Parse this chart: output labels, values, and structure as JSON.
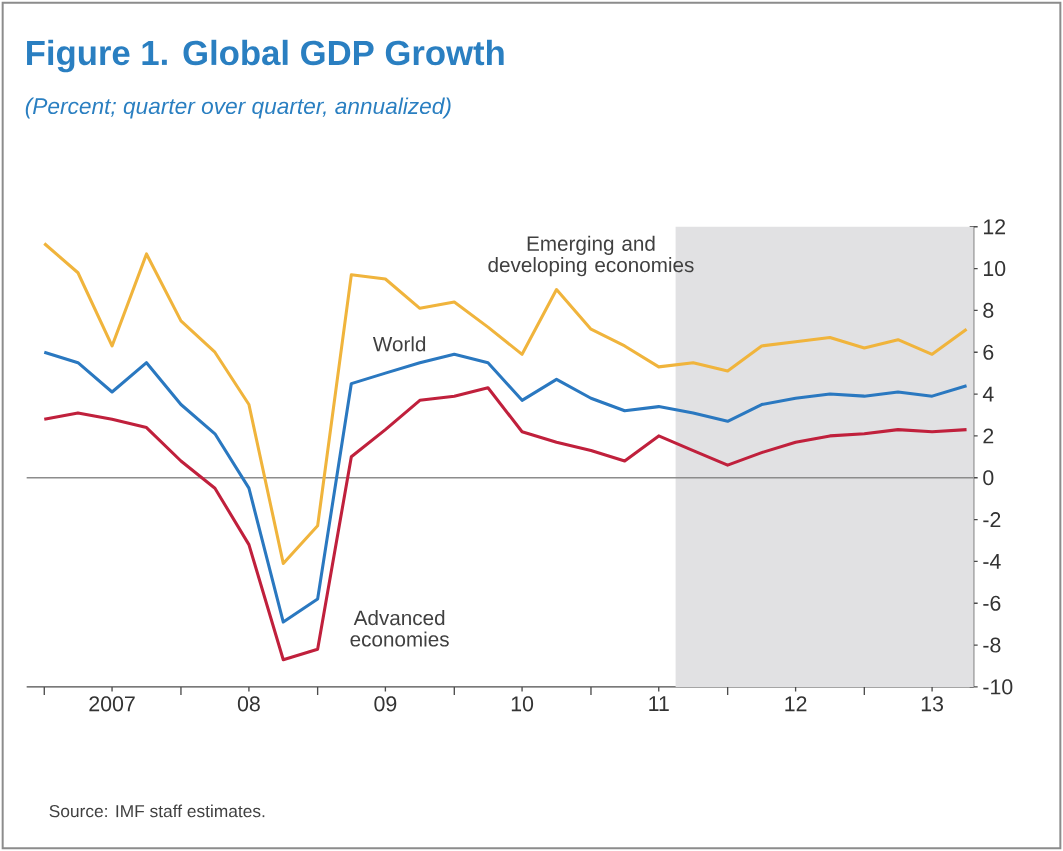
{
  "chart_data": {
    "type": "line",
    "title": "Figure 1.  Global GDP Growth",
    "subtitle": "(Percent; quarter over quarter, annualized)",
    "annotations": [
      "Source: IMF staff estimates."
    ],
    "x": [
      "2007-01",
      "2007-04",
      "2007-07",
      "2007-10",
      "2008-01",
      "2008-04",
      "2008-07",
      "2008-10",
      "2009-01",
      "2009-04",
      "2009-07",
      "2009-10",
      "2010-01",
      "2010-04",
      "2010-07",
      "2010-10",
      "2011-01",
      "2011-04",
      "2011-07",
      "2011-10",
      "2012-01",
      "2012-04",
      "2012-07",
      "2012-10",
      "2013-01",
      "2013-04",
      "2013-07",
      "2013-10"
    ],
    "series": [
      {
        "name": "Emerging and developing economies",
        "color": "#f0b43c",
        "values": [
          11.2,
          9.8,
          6.3,
          10.7,
          7.5,
          6.0,
          3.5,
          -4.1,
          -2.3,
          9.7,
          9.5,
          8.1,
          8.4,
          7.2,
          5.9,
          9.0,
          7.1,
          6.3,
          5.3,
          5.5,
          5.1,
          6.3,
          6.5,
          6.7,
          6.2,
          6.6,
          5.9,
          7.1
        ]
      },
      {
        "name": "World",
        "color": "#2a78c0",
        "values": [
          6.0,
          5.5,
          4.1,
          5.5,
          3.5,
          2.1,
          -0.5,
          -6.9,
          -5.8,
          4.5,
          5.0,
          5.5,
          5.9,
          5.5,
          3.7,
          4.7,
          3.8,
          3.2,
          3.4,
          3.1,
          2.7,
          3.5,
          3.8,
          4.0,
          3.9,
          4.1,
          3.9,
          4.4
        ]
      },
      {
        "name": "Advanced economies",
        "color": "#c0203c",
        "values": [
          2.8,
          3.1,
          2.8,
          2.4,
          0.8,
          -0.5,
          -3.2,
          -8.7,
          -8.2,
          1.0,
          2.3,
          3.7,
          3.9,
          4.3,
          2.2,
          1.7,
          1.3,
          0.8,
          2.0,
          1.3,
          0.6,
          1.2,
          1.7,
          2.0,
          2.1,
          2.3,
          2.2,
          2.3
        ]
      }
    ],
    "xlim": [
      "2006-11-15",
      "2013-10-20"
    ],
    "xticks": [
      {
        "value": "2007-01",
        "label": null
      },
      {
        "value": "2007-07",
        "label": "2007"
      },
      {
        "value": "2008-01",
        "label": null
      },
      {
        "value": "2008-07",
        "label": "08"
      },
      {
        "value": "2009-01",
        "label": null
      },
      {
        "value": "2009-07",
        "label": "09"
      },
      {
        "value": "2010-01",
        "label": null
      },
      {
        "value": "2010-07",
        "label": "10"
      },
      {
        "value": "2011-01",
        "label": null
      },
      {
        "value": "2011-07",
        "label": "11"
      },
      {
        "value": "2012-01",
        "label": null
      },
      {
        "value": "2012-07",
        "label": "12"
      },
      {
        "value": "2013-01",
        "label": null
      },
      {
        "value": "2013-07",
        "label": "13"
      }
    ],
    "ylim": [
      -10,
      12
    ],
    "yticks": [
      -10,
      -8,
      -6,
      -4,
      -2,
      0,
      2,
      4,
      6,
      8,
      10,
      12
    ],
    "ref_lines": [
      {
        "axis": "y",
        "value": 0,
        "color": "#8c8c8c"
      }
    ],
    "bands": [
      {
        "axis": "x",
        "from": "2011-08-15",
        "to": "2013-10-20",
        "color": "#e1e1e3"
      }
    ],
    "grid": false,
    "legend": false,
    "marker": "none",
    "line_style": "solid"
  }
}
